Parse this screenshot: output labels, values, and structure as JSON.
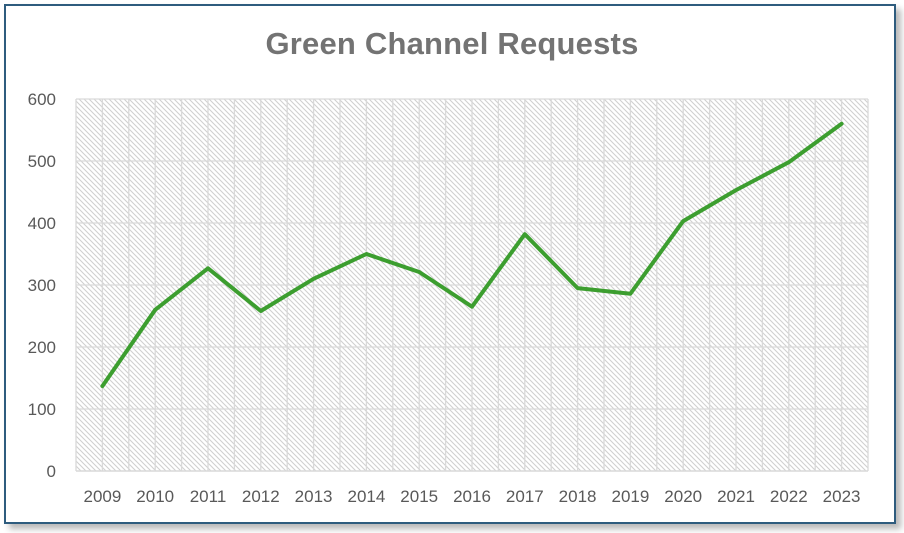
{
  "chart_data": {
    "type": "line",
    "title": "Green Channel Requests",
    "xlabel": "",
    "ylabel": "",
    "categories": [
      "2009",
      "2010",
      "2011",
      "2012",
      "2013",
      "2014",
      "2015",
      "2016",
      "2017",
      "2018",
      "2019",
      "2020",
      "2021",
      "2022",
      "2023"
    ],
    "series": [
      {
        "name": "Green Channel Requests",
        "values": [
          137,
          260,
          327,
          258,
          310,
          350,
          321,
          265,
          382,
          295,
          286,
          403,
          453,
          498,
          560
        ],
        "color": "#3c9e2f"
      }
    ],
    "ylim": [
      0,
      600
    ],
    "yticks": [
      0,
      100,
      200,
      300,
      400,
      500,
      600
    ],
    "grid": true,
    "legend": "none",
    "plot_fill": "diagonal-hatch"
  },
  "colors": {
    "frame_border": "#2e5c7e",
    "line": "#3c9e2f",
    "title": "#737373",
    "tick_text": "#595959",
    "grid": "#d9d9d9",
    "hatch": "#d0d0d0"
  }
}
